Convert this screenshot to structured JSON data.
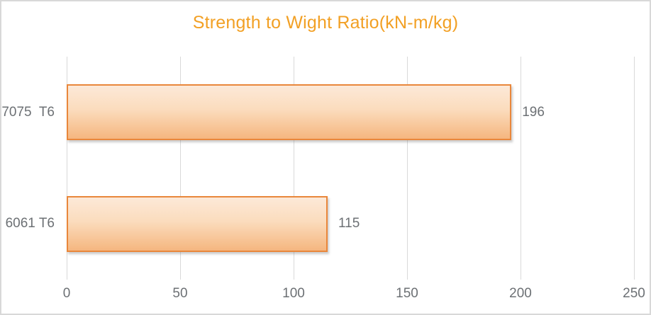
{
  "chart_data": {
    "type": "bar",
    "orientation": "horizontal",
    "title": "Strength to Wight Ratio(kN-m/kg)",
    "categories": [
      "7075  T6",
      "6061 T6"
    ],
    "values": [
      196,
      115
    ],
    "data_labels": [
      "196",
      "115"
    ],
    "xlabel": "",
    "ylabel": "",
    "xlim": [
      0,
      250
    ],
    "xticks": [
      0,
      50,
      100,
      150,
      200,
      250
    ],
    "xtick_labels": [
      "0",
      "50",
      "100",
      "150",
      "200",
      "250"
    ],
    "grid": "vertical-major-gridlines",
    "legend": "none"
  },
  "colors": {
    "title": "#F2A024",
    "bar_border": "#E9873B",
    "bar_fill_top": "#FCE9D8",
    "bar_fill_mid": "#FBDCBD",
    "bar_fill_bottom": "#F5B67F",
    "gridline": "#D9D9D9",
    "label_text": "#6C7074",
    "chart_border": "#D8D8D8",
    "background": "#FFFFFF"
  }
}
